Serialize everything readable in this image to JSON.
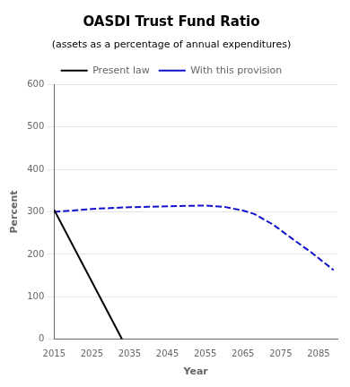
{
  "chart_data": {
    "type": "line",
    "title": "OASDI Trust Fund Ratio",
    "subtitle": "(assets as a percentage of annual expenditures)",
    "x_label": "Year",
    "y_label": "Percent",
    "xlim": [
      2015,
      2090
    ],
    "ylim": [
      0,
      600
    ],
    "xticks": [
      2015,
      2025,
      2035,
      2045,
      2055,
      2065,
      2075,
      2085
    ],
    "yticks": [
      0,
      100,
      200,
      300,
      400,
      500,
      600
    ],
    "grid": "y",
    "legend": "top",
    "series": [
      {
        "name": "Present law",
        "color": "#000000",
        "line_style": "solid",
        "x": [
          2015,
          2033
        ],
        "values": [
          305,
          0
        ]
      },
      {
        "name": "With this provision",
        "color": "#1111cc",
        "line_style": "dashed",
        "x": [
          2015,
          2020,
          2025,
          2030,
          2035,
          2040,
          2045,
          2050,
          2055,
          2060,
          2065,
          2068,
          2073,
          2078,
          2083,
          2089
        ],
        "values": [
          300,
          303,
          307,
          309,
          311,
          312,
          313,
          314,
          315,
          312,
          303,
          295,
          270,
          237,
          205,
          163
        ]
      }
    ]
  }
}
